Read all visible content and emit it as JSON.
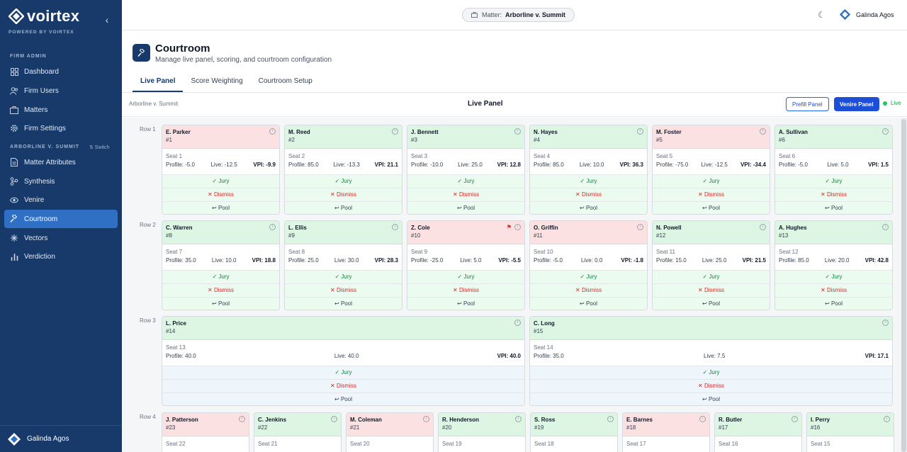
{
  "brand": {
    "name": "voirtex",
    "tagline": "POWERED BY VOIRTEX"
  },
  "sidebar": {
    "section_firm": "FIRM ADMIN",
    "section_matter": "ARBORLINE V. SUMMIT",
    "switch_label": "⇅ Switch",
    "firm_items": [
      {
        "label": "Dashboard",
        "icon": "grid-icon"
      },
      {
        "label": "Firm Users",
        "icon": "users-icon"
      },
      {
        "label": "Matters",
        "icon": "briefcase-icon"
      },
      {
        "label": "Firm Settings",
        "icon": "gear-icon"
      }
    ],
    "matter_items": [
      {
        "label": "Matter Attributes",
        "icon": "document-icon"
      },
      {
        "label": "Synthesis",
        "icon": "branch-icon"
      },
      {
        "label": "Venire",
        "icon": "eye-icon"
      },
      {
        "label": "Courtroom",
        "icon": "gavel-icon"
      },
      {
        "label": "Vectors",
        "icon": "vectors-icon"
      },
      {
        "label": "Verdiction",
        "icon": "bar-chart-icon"
      }
    ],
    "active": "Courtroom",
    "user": "Galinda Agos"
  },
  "topbar": {
    "matter_label": "Matter:",
    "matter_value": "Arborline v. Summit",
    "user": "Galinda Agos"
  },
  "page": {
    "title": "Courtroom",
    "subtitle": "Manage live panel, scoring, and courtroom configuration"
  },
  "tabs": [
    {
      "label": "Live Panel",
      "active": true
    },
    {
      "label": "Score Weighting",
      "active": false
    },
    {
      "label": "Courtroom Setup",
      "active": false
    }
  ],
  "panel": {
    "matter": "Arborline v. Summit",
    "title": "Live Panel",
    "prefill_label": "Prefill Panel",
    "venire_label": "Venire Panel",
    "live_label": "Live"
  },
  "actions": {
    "jury": "✓ Jury",
    "dismiss": "✕ Dismiss",
    "pool": "↩ Pool"
  },
  "rows": [
    {
      "label": "Row 1",
      "cards": [
        {
          "name": "E. Parker",
          "num": "#1",
          "status": "red",
          "seat": "Seat 1",
          "profile": "Profile: -5.0",
          "live": "Live: -12.5",
          "vpi": "VPI: -9.9"
        },
        {
          "name": "M. Reed",
          "num": "#2",
          "status": "green",
          "seat": "Seat 2",
          "profile": "Profile: 85.0",
          "live": "Live: -13.3",
          "vpi": "VPI: 21.1"
        },
        {
          "name": "J. Bennett",
          "num": "#3",
          "status": "green",
          "seat": "Seat 3",
          "profile": "Profile: -10.0",
          "live": "Live: 25.0",
          "vpi": "VPI: 12.8"
        },
        {
          "name": "N. Hayes",
          "num": "#4",
          "status": "green",
          "seat": "Seat 4",
          "profile": "Profile: 85.0",
          "live": "Live: 10.0",
          "vpi": "VPI: 36.3"
        },
        {
          "name": "M. Foster",
          "num": "#5",
          "status": "red",
          "seat": "Seat 5",
          "profile": "Profile: -75.0",
          "live": "Live: -12.5",
          "vpi": "VPI: -34.4"
        },
        {
          "name": "A. Sullivan",
          "num": "#6",
          "status": "green",
          "seat": "Seat 6",
          "profile": "Profile: -5.0",
          "live": "Live: 5.0",
          "vpi": "VPI: 1.5"
        }
      ]
    },
    {
      "label": "Row 2",
      "cards": [
        {
          "name": "C. Warren",
          "num": "#8",
          "status": "green",
          "seat": "Seat 7",
          "profile": "Profile: 35.0",
          "live": "Live: 10.0",
          "vpi": "VPI: 18.8"
        },
        {
          "name": "L. Ellis",
          "num": "#9",
          "status": "green",
          "seat": "Seat 8",
          "profile": "Profile: 25.0",
          "live": "Live: 30.0",
          "vpi": "VPI: 28.3"
        },
        {
          "name": "Z. Cole",
          "num": "#10",
          "status": "red",
          "flag": true,
          "seat": "Seat 9",
          "profile": "Profile: -25.0",
          "live": "Live: 5.0",
          "vpi": "VPI: -5.5"
        },
        {
          "name": "O. Griffin",
          "num": "#11",
          "status": "red",
          "seat": "Seat 10",
          "profile": "Profile: -5.0",
          "live": "Live: 0.0",
          "vpi": "VPI: -1.8"
        },
        {
          "name": "N. Powell",
          "num": "#12",
          "status": "green",
          "seat": "Seat 11",
          "profile": "Profile: 15.0",
          "live": "Live: 25.0",
          "vpi": "VPI: 21.5"
        },
        {
          "name": "A. Hughes",
          "num": "#13",
          "status": "green",
          "seat": "Seat 12",
          "profile": "Profile: 85.0",
          "live": "Live: 20.0",
          "vpi": "VPI: 42.8"
        }
      ]
    },
    {
      "label": "Row 3",
      "cards": [
        {
          "name": "L. Price",
          "num": "#14",
          "status": "green",
          "seat": "Seat 13",
          "profile": "Profile: 40.0",
          "live": "Live: 40.0",
          "vpi": "VPI: 40.0"
        },
        {
          "name": "C. Long",
          "num": "#15",
          "status": "green",
          "seat": "Seat 14",
          "profile": "Profile: 35.0",
          "live": "Live: 7.5",
          "vpi": "VPI: 17.1"
        }
      ]
    },
    {
      "label": "Row 4",
      "cards": [
        {
          "name": "J. Patterson",
          "num": "#23",
          "status": "red",
          "seat": "Seat 22"
        },
        {
          "name": "C. Jenkins",
          "num": "#22",
          "status": "green",
          "seat": "Seat 21"
        },
        {
          "name": "M. Coleman",
          "num": "#21",
          "status": "red",
          "seat": "Seat 20"
        },
        {
          "name": "R. Henderson",
          "num": "#20",
          "status": "green",
          "seat": "Seat 19"
        },
        {
          "name": "S. Ross",
          "num": "#19",
          "status": "green",
          "seat": "Seat 18"
        },
        {
          "name": "E. Barnes",
          "num": "#18",
          "status": "red",
          "seat": "Seat 17"
        },
        {
          "name": "R. Butler",
          "num": "#17",
          "status": "green",
          "seat": "Seat 16"
        },
        {
          "name": "I. Perry",
          "num": "#16",
          "status": "green",
          "seat": "Seat 15"
        }
      ]
    }
  ],
  "colors": {
    "sidebar": "#173a6a",
    "active_nav": "#2f6fc4",
    "green_card": "#dcf6e3",
    "red_card": "#fbe1e1",
    "accent": "#1d4ed8"
  }
}
